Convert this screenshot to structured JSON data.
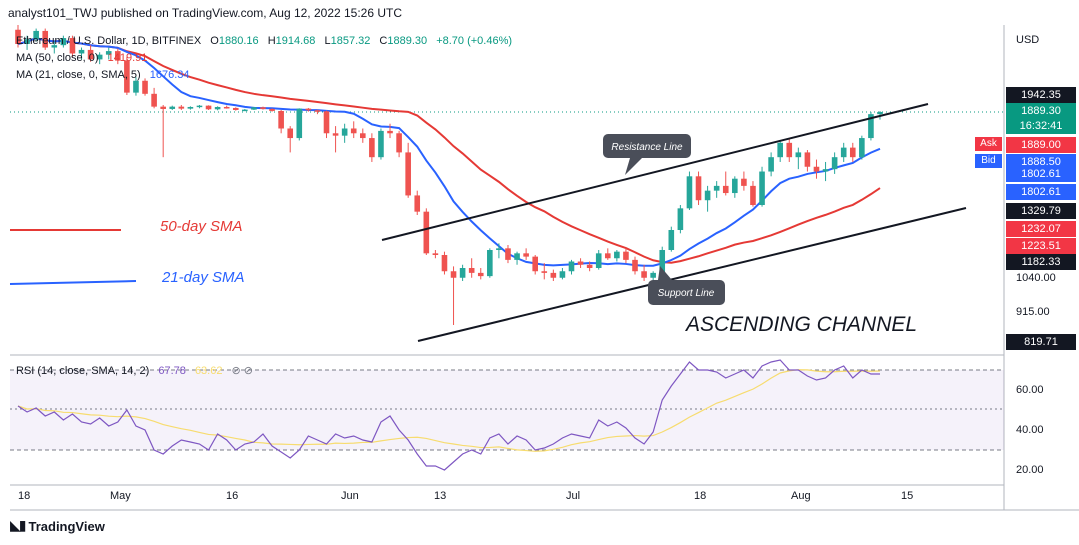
{
  "header": {
    "publisher_line": "analyst101_TWJ published on TradingView.com, Aug 12, 2022 15:26 UTC"
  },
  "legend": {
    "symbol": "Ethereum / U.S. Dollar, 1D, BITFINEX",
    "o_label": "O",
    "o_value": "1880.16",
    "h_label": "H",
    "h_value": "1914.68",
    "l_label": "L",
    "l_value": "1857.32",
    "c_label": "C",
    "c_value": "1889.30",
    "change": "+8.70 (+0.46%)",
    "ma50_label": "MA (50, close, 0)",
    "ma50_value": "1419.91",
    "ma21_label": "MA (21, close, 0, SMA, 5)",
    "ma21_value": "1676.34",
    "rsi_label": "RSI (14, close, SMA, 14, 2)",
    "rsi_value": "67.78",
    "rsi_sma_value": "63.62"
  },
  "price_axis": {
    "currency": "USD",
    "ticks": [
      "1040.00",
      "915.00"
    ],
    "tags": [
      {
        "label": "1942.35",
        "color": "#131722"
      },
      {
        "label": "1889.30",
        "color": "#089981"
      },
      {
        "label": "16:32:41",
        "color": "#089981"
      },
      {
        "label": "1889.00",
        "color": "#f23645"
      },
      {
        "label": "1888.50",
        "color": "#2962ff"
      },
      {
        "label": "1802.61",
        "color": "#2962ff"
      },
      {
        "label": "1802.61",
        "color": "#2962ff"
      },
      {
        "label": "1329.79",
        "color": "#131722"
      },
      {
        "label": "1232.07",
        "color": "#f23645"
      },
      {
        "label": "1223.51",
        "color": "#f23645"
      },
      {
        "label": "1182.33",
        "color": "#131722"
      },
      {
        "label": "819.71",
        "color": "#131722"
      }
    ],
    "ask_label": "Ask",
    "bid_label": "Bid"
  },
  "rsi_axis": {
    "ticks": [
      "60.00",
      "40.00",
      "20.00"
    ]
  },
  "time_axis": {
    "ticks": [
      "18",
      "May",
      "16",
      "Jun",
      "13",
      "Jul",
      "18",
      "Aug",
      "15"
    ]
  },
  "annotations": {
    "sma50_label": "50-day SMA",
    "sma21_label": "21-day SMA",
    "resistance_label": "Resistance Line",
    "support_label": "Support Line",
    "channel_label": "ASCENDING CHANNEL"
  },
  "colors": {
    "up": "#26a69a",
    "down": "#ef5350",
    "ma50": "#e53935",
    "ma21": "#2962ff",
    "rsi": "#7e57c2",
    "rsi_sma": "#f7dc6f"
  },
  "branding": {
    "name": "TradingView"
  },
  "chart_data": {
    "type": "candlestick",
    "title": "Ethereum / U.S. Dollar, 1D, BITFINEX",
    "y_axis_ticks": [
      1040,
      915
    ],
    "rsi_ylim": [
      20,
      70
    ],
    "series": [
      {
        "name": "MA (50, close, 0)",
        "last": 1419.91
      },
      {
        "name": "MA (21, close, 0, SMA, 5)",
        "last": 1676.34
      },
      {
        "name": "RSI (14, close, SMA, 14, 2)",
        "last": 67.78
      }
    ],
    "last_candle": {
      "open": 1880.16,
      "high": 1914.68,
      "low": 1857.32,
      "close": 1889.3
    },
    "candles_approx": [
      [
        2950,
        2990,
        2800,
        2830
      ],
      [
        2830,
        2900,
        2780,
        2870
      ],
      [
        2870,
        2960,
        2850,
        2940
      ],
      [
        2940,
        2960,
        2780,
        2800
      ],
      [
        2800,
        2850,
        2750,
        2820
      ],
      [
        2820,
        2900,
        2800,
        2880
      ],
      [
        2880,
        2900,
        2720,
        2750
      ],
      [
        2750,
        2800,
        2700,
        2780
      ],
      [
        2780,
        2820,
        2680,
        2700
      ],
      [
        2700,
        2760,
        2660,
        2740
      ],
      [
        2740,
        2800,
        2700,
        2770
      ],
      [
        2770,
        2790,
        2660,
        2690
      ],
      [
        2690,
        2720,
        2400,
        2420
      ],
      [
        2420,
        2550,
        2380,
        2520
      ],
      [
        2520,
        2540,
        2380,
        2410
      ],
      [
        2410,
        2460,
        2000,
        2050
      ],
      [
        2050,
        2100,
        1700,
        1980
      ],
      [
        1980,
        2080,
        1950,
        2050
      ],
      [
        2050,
        2100,
        1950,
        1990
      ],
      [
        1990,
        2060,
        1960,
        2040
      ],
      [
        2040,
        2100,
        2000,
        2080
      ],
      [
        2080,
        2090,
        1950,
        1970
      ],
      [
        1970,
        2060,
        1940,
        2040
      ],
      [
        2040,
        2080,
        1990,
        2010
      ],
      [
        2010,
        2030,
        1930,
        1950
      ],
      [
        1950,
        1980,
        1920,
        1960
      ],
      [
        1960,
        2040,
        1950,
        2030
      ],
      [
        2030,
        2050,
        1960,
        1980
      ],
      [
        1980,
        2000,
        1900,
        1920
      ],
      [
        1920,
        1950,
        1800,
        1820
      ],
      [
        1820,
        1830,
        1720,
        1780
      ],
      [
        1780,
        2000,
        1770,
        1990
      ],
      [
        1990,
        2010,
        1900,
        1940
      ],
      [
        1940,
        1960,
        1880,
        1910
      ],
      [
        1910,
        1930,
        1780,
        1800
      ],
      [
        1800,
        1830,
        1720,
        1790
      ],
      [
        1790,
        1840,
        1760,
        1820
      ],
      [
        1820,
        1850,
        1780,
        1800
      ],
      [
        1800,
        1820,
        1760,
        1780
      ],
      [
        1780,
        1800,
        1680,
        1700
      ],
      [
        1700,
        1820,
        1690,
        1810
      ],
      [
        1810,
        1840,
        1780,
        1800
      ],
      [
        1800,
        1810,
        1700,
        1720
      ],
      [
        1720,
        1760,
        1530,
        1540
      ],
      [
        1540,
        1560,
        1440,
        1460
      ],
      [
        1460,
        1480,
        1200,
        1210
      ],
      [
        1210,
        1230,
        1180,
        1200
      ],
      [
        1200,
        1220,
        1080,
        1100
      ],
      [
        1100,
        1130,
        880,
        1060
      ],
      [
        1060,
        1140,
        1040,
        1120
      ],
      [
        1120,
        1180,
        1060,
        1090
      ],
      [
        1090,
        1120,
        1050,
        1070
      ],
      [
        1070,
        1240,
        1060,
        1230
      ],
      [
        1230,
        1270,
        1180,
        1240
      ],
      [
        1240,
        1260,
        1150,
        1170
      ],
      [
        1170,
        1220,
        1140,
        1210
      ],
      [
        1210,
        1240,
        1170,
        1190
      ],
      [
        1190,
        1200,
        1080,
        1100
      ],
      [
        1100,
        1150,
        1050,
        1090
      ],
      [
        1090,
        1110,
        1040,
        1060
      ],
      [
        1060,
        1120,
        1050,
        1100
      ],
      [
        1100,
        1170,
        1080,
        1160
      ],
      [
        1160,
        1180,
        1120,
        1140
      ],
      [
        1140,
        1160,
        1100,
        1120
      ],
      [
        1120,
        1230,
        1110,
        1210
      ],
      [
        1210,
        1240,
        1170,
        1180
      ],
      [
        1180,
        1230,
        1160,
        1220
      ],
      [
        1220,
        1240,
        1150,
        1170
      ],
      [
        1170,
        1190,
        1080,
        1100
      ],
      [
        1100,
        1140,
        1040,
        1060
      ],
      [
        1060,
        1100,
        1030,
        1090
      ],
      [
        1090,
        1250,
        1080,
        1230
      ],
      [
        1230,
        1370,
        1220,
        1350
      ],
      [
        1350,
        1500,
        1330,
        1480
      ],
      [
        1480,
        1640,
        1470,
        1620
      ],
      [
        1620,
        1640,
        1500,
        1520
      ],
      [
        1520,
        1580,
        1460,
        1560
      ],
      [
        1560,
        1600,
        1530,
        1580
      ],
      [
        1580,
        1640,
        1540,
        1550
      ],
      [
        1550,
        1620,
        1530,
        1610
      ],
      [
        1610,
        1640,
        1560,
        1580
      ],
      [
        1580,
        1600,
        1490,
        1500
      ],
      [
        1500,
        1660,
        1490,
        1640
      ],
      [
        1640,
        1720,
        1620,
        1700
      ],
      [
        1700,
        1770,
        1680,
        1760
      ],
      [
        1760,
        1780,
        1680,
        1700
      ],
      [
        1700,
        1740,
        1650,
        1720
      ],
      [
        1720,
        1730,
        1640,
        1660
      ],
      [
        1660,
        1690,
        1610,
        1640
      ],
      [
        1640,
        1680,
        1600,
        1650
      ],
      [
        1650,
        1720,
        1630,
        1700
      ],
      [
        1700,
        1760,
        1680,
        1740
      ],
      [
        1740,
        1760,
        1680,
        1700
      ],
      [
        1700,
        1790,
        1690,
        1780
      ],
      [
        1780,
        1890,
        1770,
        1880
      ],
      [
        1880,
        1915,
        1857,
        1889
      ]
    ]
  }
}
